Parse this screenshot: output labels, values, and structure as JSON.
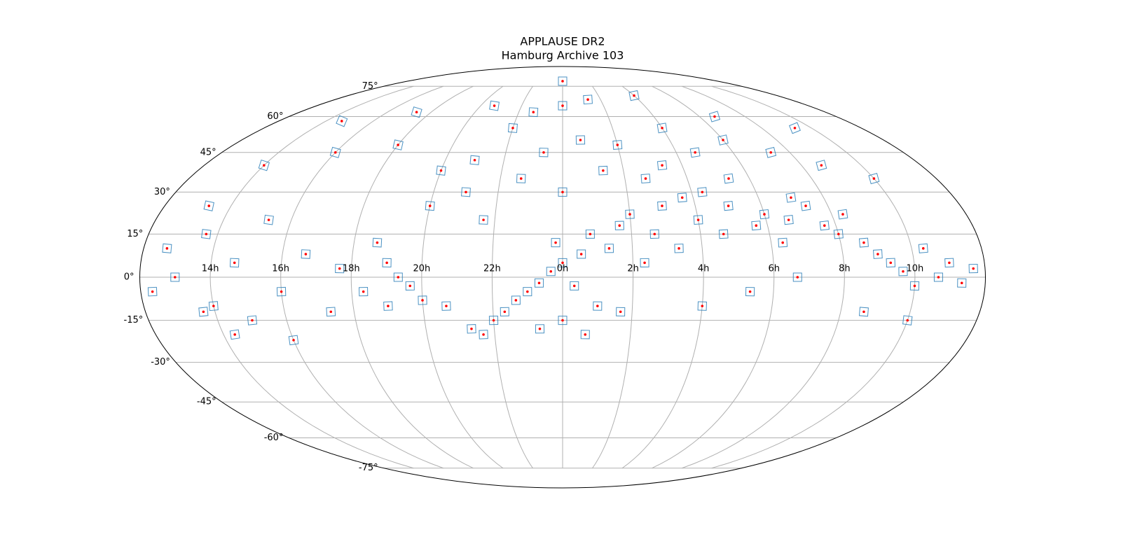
{
  "chart_data": {
    "type": "scatter",
    "title": "APPLAUSE DR2",
    "subtitle": "Hamburg Archive 103",
    "projection": "mollweide",
    "grid": true,
    "color": "#ff0000",
    "footprint_color": "#1f77b4",
    "xlim": [
      -180,
      180
    ],
    "ylim": [
      -90,
      90
    ],
    "xticks": [
      {
        "value": -150,
        "label": "14h"
      },
      {
        "value": -120,
        "label": "16h"
      },
      {
        "value": -90,
        "label": "18h"
      },
      {
        "value": -60,
        "label": "20h"
      },
      {
        "value": -30,
        "label": "22h"
      },
      {
        "value": 0,
        "label": "0h"
      },
      {
        "value": 30,
        "label": "2h"
      },
      {
        "value": 60,
        "label": "4h"
      },
      {
        "value": 90,
        "label": "6h"
      },
      {
        "value": 120,
        "label": "8h"
      },
      {
        "value": 150,
        "label": "10h"
      }
    ],
    "yticks": [
      {
        "value": -75,
        "label": "-75°"
      },
      {
        "value": -60,
        "label": "-60°"
      },
      {
        "value": -45,
        "label": "-45°"
      },
      {
        "value": -30,
        "label": "-30°"
      },
      {
        "value": -15,
        "label": "-15°"
      },
      {
        "value": 0,
        "label": "0°"
      },
      {
        "value": 15,
        "label": "15°"
      },
      {
        "value": 30,
        "label": "30°"
      },
      {
        "value": 45,
        "label": "45°"
      },
      {
        "value": 60,
        "label": "60°"
      },
      {
        "value": 75,
        "label": "75°"
      }
    ],
    "x": [
      0,
      -5,
      5,
      -10,
      8,
      -3,
      12,
      -15,
      20,
      -20,
      25,
      15,
      -25,
      30,
      35,
      -30,
      40,
      45,
      -40,
      50,
      55,
      60,
      65,
      -50,
      -60,
      -65,
      -70,
      -75,
      70,
      75,
      80,
      85,
      90,
      95,
      100,
      105,
      110,
      115,
      120,
      125,
      130,
      135,
      140,
      145,
      150,
      155,
      160,
      165,
      170,
      175,
      -10,
      10,
      -30,
      30,
      50,
      -45,
      -60,
      70,
      90,
      110,
      130,
      150,
      -90,
      -120,
      -150,
      -160,
      -170,
      -175,
      -165,
      -155,
      -150,
      -140,
      -135,
      -130,
      -120,
      -110,
      -100,
      -95,
      -85,
      -80,
      -75,
      -60,
      -45,
      -35,
      -20,
      0,
      20,
      40,
      60,
      0,
      -20,
      20,
      -50,
      60,
      100,
      140,
      -100,
      -140,
      -10,
      10,
      0,
      -35,
      25,
      60,
      80,
      100,
      130,
      150,
      -145,
      -120,
      -155,
      0
    ],
    "y": [
      5,
      2,
      -3,
      -2,
      8,
      12,
      15,
      -5,
      10,
      -8,
      18,
      -10,
      -12,
      22,
      5,
      -15,
      15,
      25,
      -18,
      10,
      28,
      20,
      30,
      -10,
      -8,
      -3,
      0,
      5,
      15,
      25,
      35,
      18,
      22,
      12,
      20,
      28,
      25,
      18,
      15,
      22,
      12,
      8,
      5,
      2,
      -3,
      10,
      0,
      5,
      -2,
      3,
      45,
      50,
      55,
      48,
      40,
      42,
      38,
      45,
      50,
      45,
      40,
      35,
      48,
      45,
      40,
      25,
      10,
      -5,
      0,
      15,
      -10,
      5,
      -15,
      20,
      -5,
      8,
      -12,
      3,
      -5,
      12,
      -10,
      25,
      30,
      20,
      35,
      30,
      38,
      35,
      55,
      65,
      62,
      68,
      65,
      70,
      60,
      55,
      62,
      58,
      -18,
      -20,
      -15,
      -20,
      -12,
      -10,
      -5,
      0,
      -12,
      -15,
      -20,
      -22,
      -12,
      78
    ]
  }
}
